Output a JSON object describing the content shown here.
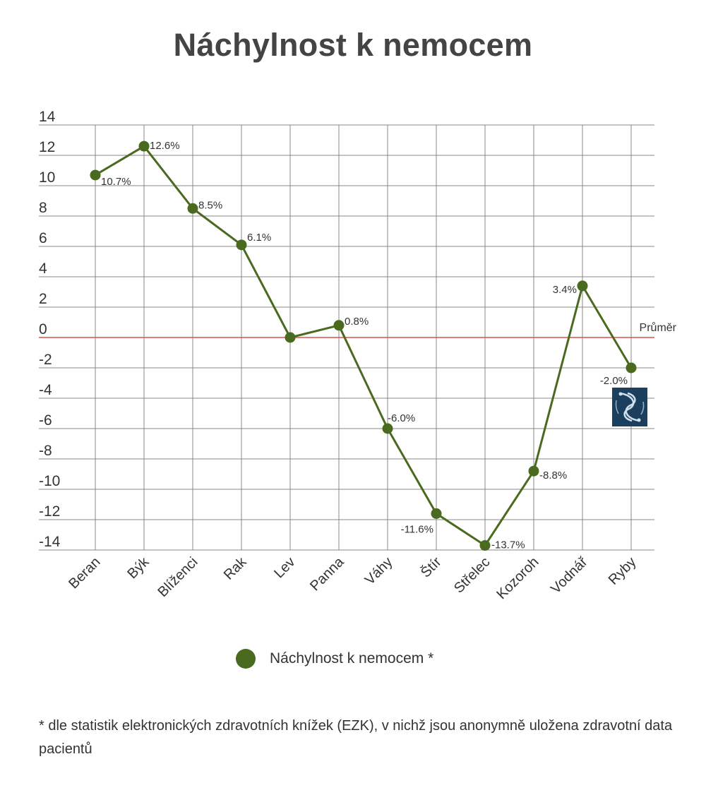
{
  "chart_data": {
    "type": "line",
    "title": "Náchylnost k nemocem",
    "categories": [
      "Beran",
      "Býk",
      "Blíženci",
      "Rak",
      "Lev",
      "Panna",
      "Váhy",
      "Štír",
      "Střelec",
      "Kozoroh",
      "Vodnář",
      "Ryby"
    ],
    "series": [
      {
        "name": "Náchylnost k nemocem *",
        "values": [
          10.7,
          12.6,
          8.5,
          6.1,
          0.0,
          0.8,
          -6.0,
          -11.6,
          -13.7,
          -8.8,
          3.4,
          -2.0
        ],
        "labels": [
          "10.7%",
          "12.6%",
          "8.5%",
          "6.1%",
          "",
          "0.8%",
          "-6.0%",
          "-11.6%",
          "-13.7%",
          "-8.8%",
          "3.4%",
          "-2.0%"
        ]
      }
    ],
    "yticks": [
      "14",
      "12",
      "10",
      "8",
      "6",
      "4",
      "2",
      "0",
      "-2",
      "-4",
      "-6",
      "-8",
      "-10",
      "-12",
      "-14"
    ],
    "ylim": [
      -14,
      14
    ],
    "reference_line": {
      "value": 0,
      "label": "Průměr"
    },
    "grid": true,
    "legend_position": "bottom",
    "colors": {
      "series": "#4a6a1f",
      "reference": "#d9534f",
      "grid": "#888888"
    }
  },
  "legend": {
    "label": "Náchylnost k nemocem *"
  },
  "footnote": "* dle statistik elektronických zdravotních knížek (EZK), v nichž jsou anonymně uložena zdravotní data pacientů",
  "icon": "pisces-zodiac-icon"
}
